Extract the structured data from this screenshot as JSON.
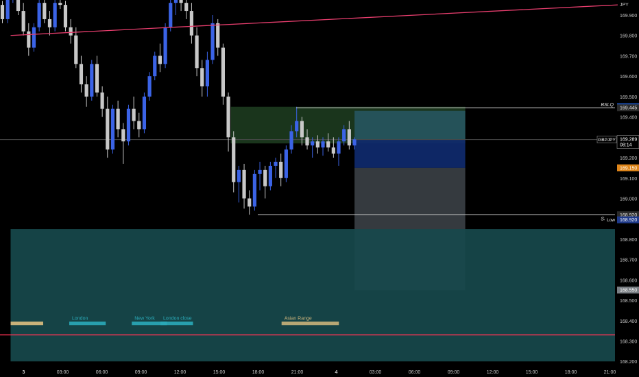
{
  "chart_data": {
    "type": "candlestick",
    "symbol": "GBPJPY",
    "currency": "JPY",
    "ylim": [
      168.2,
      169.97
    ],
    "y_ticks": [
      169.9,
      169.8,
      169.7,
      169.6,
      169.5,
      169.4,
      169.3,
      169.2,
      169.1,
      169.0,
      168.9,
      168.8,
      168.7,
      168.6,
      168.5,
      168.4,
      168.3,
      168.2
    ],
    "y_tick_labels": [
      "169.900",
      "169.800",
      "169.700",
      "169.600",
      "169.500",
      "169.400",
      "169.300",
      "169.200",
      "169.100",
      "169.000",
      "168.900",
      "168.800",
      "168.700",
      "168.600",
      "168.500",
      "168.400",
      "168.300",
      "168.200"
    ],
    "x_ticks": [
      {
        "label": "3",
        "t": 0,
        "bold": true
      },
      {
        "label": "03:00",
        "t": 3
      },
      {
        "label": "06:00",
        "t": 6
      },
      {
        "label": "09:00",
        "t": 9
      },
      {
        "label": "12:00",
        "t": 12
      },
      {
        "label": "15:00",
        "t": 15
      },
      {
        "label": "18:00",
        "t": 18
      },
      {
        "label": "21:00",
        "t": 21
      },
      {
        "label": "4",
        "t": 24,
        "bold": true
      },
      {
        "label": "03:00",
        "t": 27
      },
      {
        "label": "06:00",
        "t": 30
      },
      {
        "label": "09:00",
        "t": 33
      },
      {
        "label": "12:00",
        "t": 36
      },
      {
        "label": "15:00",
        "t": 39
      },
      {
        "label": "18:00",
        "t": 42
      },
      {
        "label": "21:00",
        "t": 45
      }
    ],
    "candles": [
      [
        169.95,
        169.97,
        169.86,
        169.88
      ],
      [
        169.88,
        169.99,
        169.86,
        169.98
      ],
      [
        169.98,
        170.0,
        169.96,
        169.99
      ],
      [
        169.99,
        170.0,
        169.9,
        169.92
      ],
      [
        169.92,
        169.96,
        169.8,
        169.82
      ],
      [
        169.82,
        169.86,
        169.7,
        169.74
      ],
      [
        169.74,
        169.86,
        169.72,
        169.84
      ],
      [
        169.84,
        169.98,
        169.82,
        169.96
      ],
      [
        169.96,
        169.99,
        169.86,
        169.88
      ],
      [
        169.88,
        169.92,
        169.8,
        169.84
      ],
      [
        169.84,
        169.99,
        169.82,
        169.96
      ],
      [
        169.96,
        169.99,
        169.93,
        169.95
      ],
      [
        169.95,
        169.97,
        169.82,
        169.84
      ],
      [
        169.84,
        169.88,
        169.76,
        169.8
      ],
      [
        169.8,
        169.84,
        169.64,
        169.66
      ],
      [
        169.66,
        169.7,
        169.52,
        169.56
      ],
      [
        169.56,
        169.6,
        169.45,
        169.5
      ],
      [
        169.5,
        169.68,
        169.48,
        169.66
      ],
      [
        169.66,
        169.7,
        169.5,
        169.52
      ],
      [
        169.52,
        169.55,
        169.4,
        169.44
      ],
      [
        169.44,
        169.5,
        169.2,
        169.24
      ],
      [
        169.24,
        169.46,
        169.22,
        169.44
      ],
      [
        169.44,
        169.48,
        169.3,
        169.34
      ],
      [
        169.34,
        169.37,
        169.17,
        169.28
      ],
      [
        169.28,
        169.46,
        169.26,
        169.44
      ],
      [
        169.44,
        169.5,
        169.34,
        169.38
      ],
      [
        169.38,
        169.42,
        169.3,
        169.34
      ],
      [
        169.34,
        169.52,
        169.32,
        169.5
      ],
      [
        169.5,
        169.62,
        169.48,
        169.6
      ],
      [
        169.6,
        169.72,
        169.58,
        169.7
      ],
      [
        169.7,
        169.76,
        169.62,
        169.66
      ],
      [
        169.66,
        169.86,
        169.64,
        169.84
      ],
      [
        169.84,
        169.98,
        169.82,
        169.96
      ],
      [
        169.96,
        170.0,
        169.9,
        169.98
      ],
      [
        169.98,
        170.0,
        169.92,
        169.96
      ],
      [
        169.96,
        170.0,
        169.88,
        169.92
      ],
      [
        169.92,
        169.96,
        169.76,
        169.8
      ],
      [
        169.8,
        169.84,
        169.6,
        169.64
      ],
      [
        169.64,
        169.68,
        169.5,
        169.55
      ],
      [
        169.55,
        169.72,
        169.5,
        169.68
      ],
      [
        169.68,
        169.9,
        169.66,
        169.86
      ],
      [
        169.86,
        169.88,
        169.7,
        169.74
      ],
      [
        169.74,
        169.76,
        169.46,
        169.5
      ],
      [
        169.5,
        169.52,
        169.23,
        169.3
      ],
      [
        169.3,
        169.33,
        169.03,
        169.08
      ],
      [
        169.08,
        169.16,
        168.98,
        169.14
      ],
      [
        169.14,
        169.17,
        168.95,
        169.0
      ],
      [
        169.0,
        169.04,
        168.92,
        168.96
      ],
      [
        168.96,
        169.14,
        168.94,
        169.12
      ],
      [
        169.12,
        169.18,
        169.04,
        169.14
      ],
      [
        169.14,
        169.16,
        169.0,
        169.06
      ],
      [
        169.06,
        169.18,
        169.04,
        169.16
      ],
      [
        169.16,
        169.2,
        169.1,
        169.18
      ],
      [
        169.18,
        169.22,
        169.06,
        169.1
      ],
      [
        169.1,
        169.26,
        169.08,
        169.24
      ],
      [
        169.24,
        169.36,
        169.22,
        169.33
      ],
      [
        169.33,
        169.45,
        169.3,
        169.38
      ],
      [
        169.38,
        169.4,
        169.26,
        169.3
      ],
      [
        169.3,
        169.34,
        169.24,
        169.26
      ],
      [
        169.26,
        169.3,
        169.2,
        169.28
      ],
      [
        169.28,
        169.31,
        169.22,
        169.25
      ],
      [
        169.25,
        169.3,
        169.21,
        169.28
      ],
      [
        169.28,
        169.32,
        169.23,
        169.25
      ],
      [
        169.25,
        169.3,
        169.2,
        169.22
      ],
      [
        169.22,
        169.3,
        169.16,
        169.28
      ],
      [
        169.28,
        169.36,
        169.26,
        169.34
      ],
      [
        169.34,
        169.38,
        169.24,
        169.26
      ],
      [
        169.26,
        169.3,
        169.24,
        169.29
      ]
    ],
    "trendline": {
      "from": [
        -1,
        169.8
      ],
      "to": [
        45.6,
        169.95
      ]
    },
    "price_lines": [
      {
        "name": "BSLQ",
        "value": 169.445
      },
      {
        "name": "SSLQ",
        "value": 168.92
      }
    ],
    "horizontal_line_value": 168.33,
    "zones": [
      {
        "name": "fvg-box",
        "t0": 15.9,
        "t1": 33.9,
        "y0": 169.27,
        "y1": 169.45,
        "color": "#1c3a1e"
      },
      {
        "name": "stop-zone",
        "t0": 25.4,
        "t1": 33.9,
        "y0": 169.29,
        "y1": 169.43,
        "color": "#26555e"
      },
      {
        "name": "entry-zone",
        "t0": 25.4,
        "t1": 33.9,
        "y0": 169.15,
        "y1": 169.29,
        "color": "#0f2a6e"
      },
      {
        "name": "target-zone",
        "t0": 25.4,
        "t1": 33.9,
        "y0": 168.55,
        "y1": 169.15,
        "color": "#3a3f44"
      },
      {
        "name": "asian-range-box",
        "t0": -1,
        "t1": 45.6,
        "y0": 168.2,
        "y1": 168.85,
        "color": "#17494c"
      }
    ],
    "sessions": [
      {
        "label": "London",
        "t0": 3.5,
        "t1": 6.3,
        "color": "#2aaab8"
      },
      {
        "label": "New York",
        "t0": 8.3,
        "t1": 11.0,
        "color": "#2aaab8"
      },
      {
        "label": "London close",
        "t0": 10.5,
        "t1": 13.0,
        "color": "#2aaab8"
      },
      {
        "label": "Asian Range",
        "t0": 19.8,
        "t1": 24.2,
        "color": "#c9b27a"
      }
    ],
    "session_bar_value": 168.385,
    "left_session_bar": {
      "t0": -1,
      "t1": 1.5,
      "color": "#c9b27a"
    },
    "price_labels": [
      {
        "label": "169.450",
        "value": 169.45,
        "bg": "#1f5bd1",
        "fg": "#ffffff"
      },
      {
        "label": "169.445",
        "value": 169.445,
        "bg": "#2b2b2b",
        "fg": "#e6e6e6",
        "tag": "BSLQ"
      },
      {
        "label": "169.289",
        "value": 169.289,
        "bg": "#000000",
        "fg": "#ffffff",
        "sub": "08:14",
        "symbol_tag": "GBPJPY",
        "border": "#9a9a9a"
      },
      {
        "label": "169.150",
        "value": 169.15,
        "bg": "#e0861a",
        "fg": "#ffffff"
      },
      {
        "label": "168.920",
        "value": 168.92,
        "bg": "#2b2b2b",
        "fg": "#e6e6e6",
        "tag": "SSLQ"
      },
      {
        "label": "168.920",
        "value": 168.895,
        "bg": "#1f3a8a",
        "fg": "#ffffff",
        "left_tag": "Low"
      },
      {
        "label": "168.550",
        "value": 168.55,
        "bg": "#7a7f84",
        "fg": "#ffffff"
      }
    ],
    "colors": {
      "up": "#3b63e6",
      "down": "#c8c8c8",
      "trendline": "#e83e6e",
      "hline": "#ff3355",
      "price_line": "#cfcfcf",
      "current": "#4a4a4a"
    }
  }
}
